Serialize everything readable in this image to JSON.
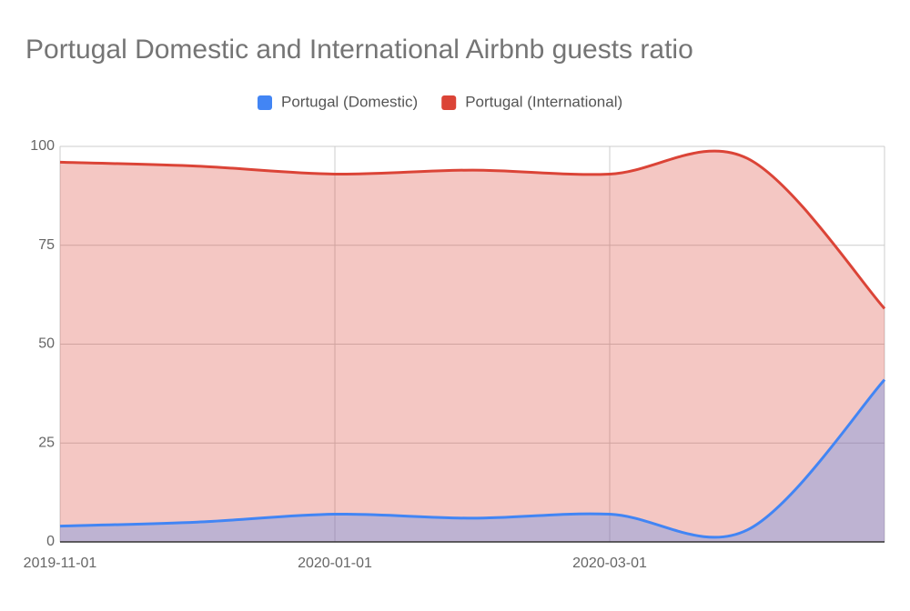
{
  "chart_data": {
    "type": "area",
    "title": "Portugal Domestic and International Airbnb guests ratio",
    "categories": [
      "2019-11-01",
      null,
      "2020-01-01",
      null,
      "2020-03-01",
      null,
      null
    ],
    "series": [
      {
        "name": "Portugal (Domestic)",
        "color": "#4285f4",
        "values": [
          4,
          5,
          7,
          6,
          7,
          3,
          41
        ]
      },
      {
        "name": "Portugal (International)",
        "color": "#db4437",
        "values": [
          96,
          95,
          93,
          94,
          93,
          97,
          59
        ]
      }
    ],
    "ylim": [
      0,
      100
    ],
    "yticks": [
      0,
      25,
      50,
      75,
      100
    ],
    "grid": true,
    "legend": "top"
  }
}
